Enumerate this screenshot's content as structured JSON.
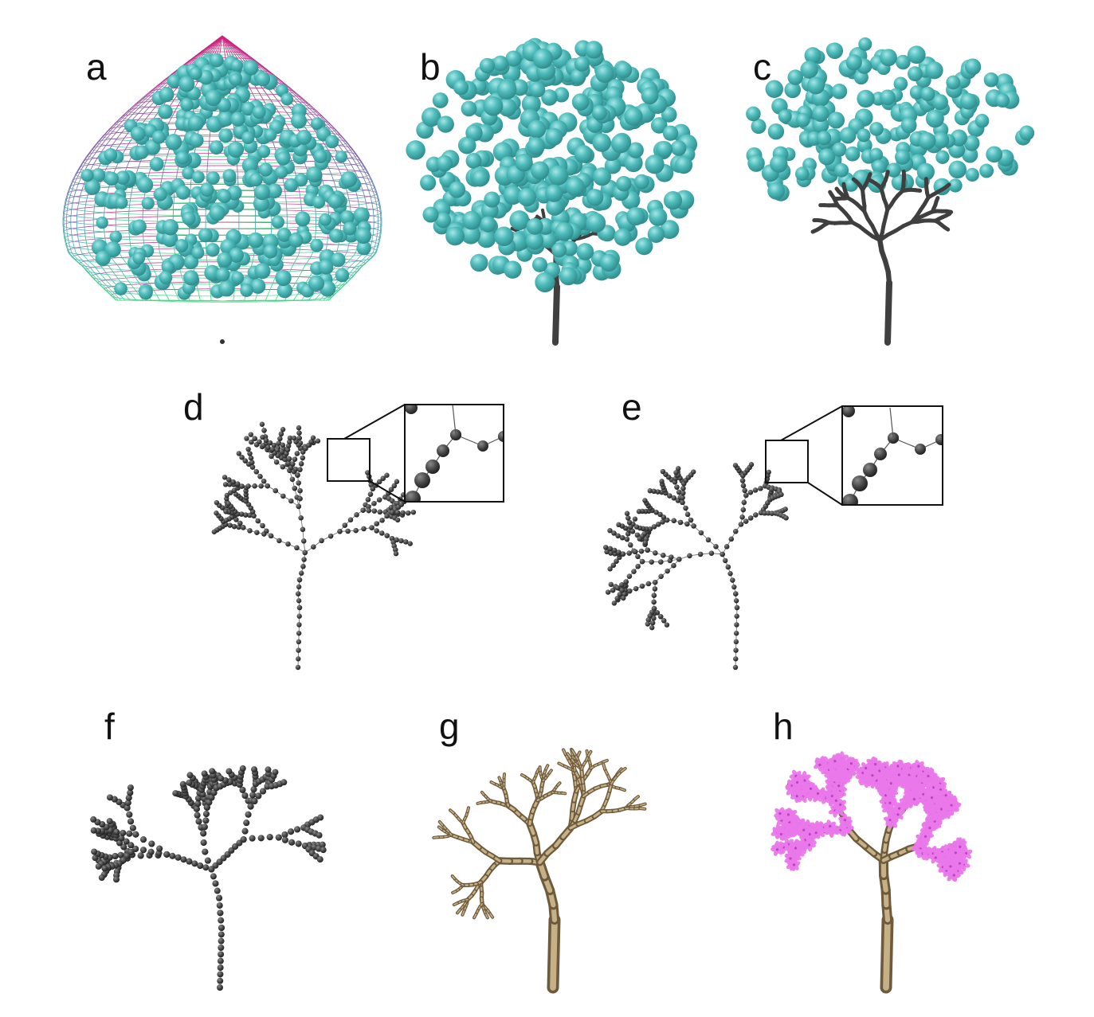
{
  "figure": {
    "panels": [
      {
        "id": "a",
        "label": "a",
        "content": "envelope-with-attraction-points"
      },
      {
        "id": "b",
        "label": "b",
        "content": "early-growth-with-attraction-points"
      },
      {
        "id": "c",
        "label": "c",
        "content": "later-growth-with-attraction-points"
      },
      {
        "id": "d",
        "label": "d",
        "content": "node-graph-with-zoom-inset"
      },
      {
        "id": "e",
        "label": "e",
        "content": "smoothed-node-graph-with-zoom-inset"
      },
      {
        "id": "f",
        "label": "f",
        "content": "resampled-node-skeleton"
      },
      {
        "id": "g",
        "label": "g",
        "content": "branch-mesh"
      },
      {
        "id": "h",
        "label": "h",
        "content": "tree-with-blossoms"
      }
    ]
  },
  "colors": {
    "attraction_point": "#4fbcbc",
    "attraction_point_highlight": "#a8e6e6",
    "branch_dark": "#3f3f3f",
    "node": "#454545",
    "wireframe_top": "#d0207f",
    "wireframe_bottom": "#39e07e",
    "bark": "#9c8460",
    "bark_light": "#c6b086",
    "blossom": "#ea78ea",
    "blossom_dark": "#b844c4"
  }
}
